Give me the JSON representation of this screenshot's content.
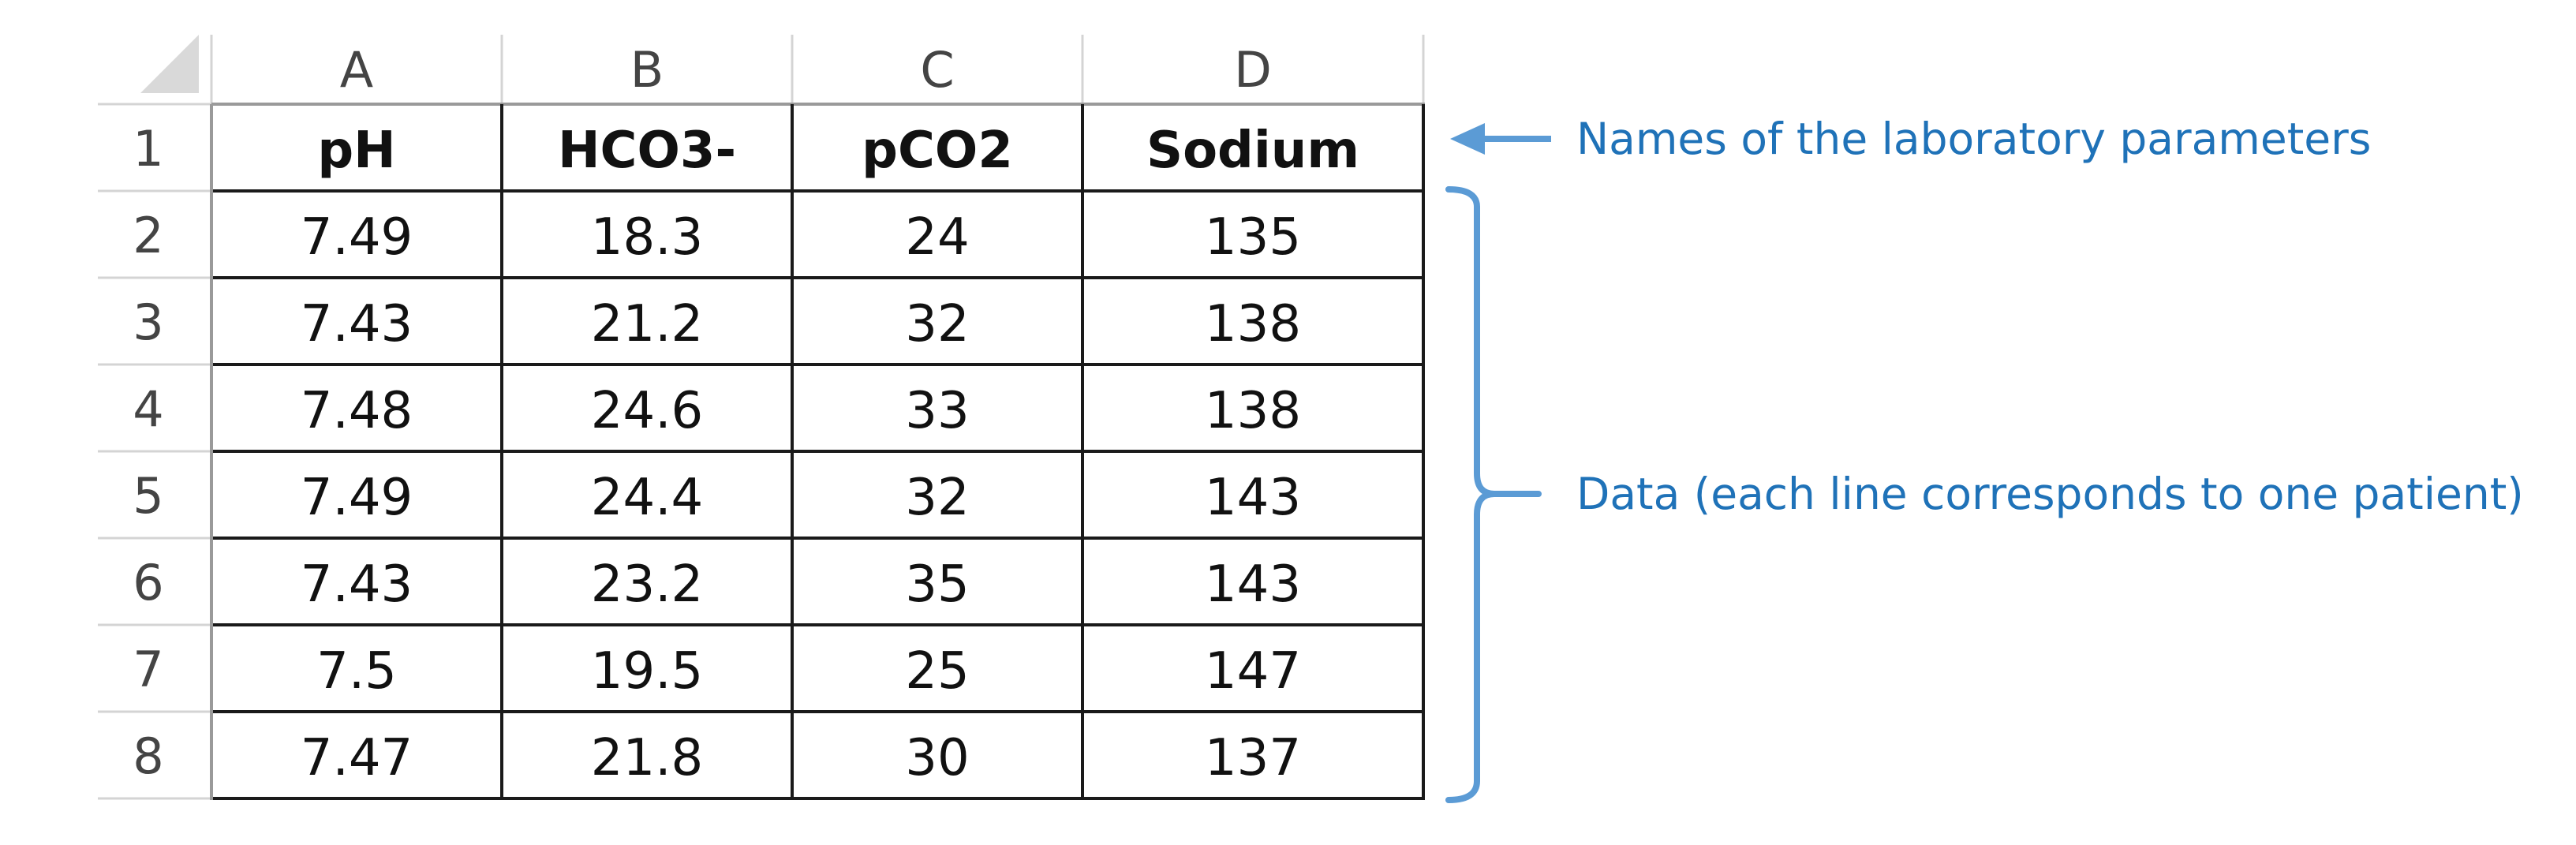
{
  "spreadsheet": {
    "column_headers": [
      "A",
      "B",
      "C",
      "D"
    ],
    "row_headers": [
      "1",
      "2",
      "3",
      "4",
      "5",
      "6",
      "7",
      "8"
    ],
    "parameter_names": [
      "pH",
      "HCO3-",
      "pCO2",
      "Sodium"
    ],
    "rows": [
      [
        "7.49",
        "18.3",
        "24",
        "135"
      ],
      [
        "7.43",
        "21.2",
        "32",
        "138"
      ],
      [
        "7.48",
        "24.6",
        "33",
        "138"
      ],
      [
        "7.49",
        "24.4",
        "32",
        "143"
      ],
      [
        "7.43",
        "23.2",
        "35",
        "143"
      ],
      [
        "7.5",
        "19.5",
        "25",
        "147"
      ],
      [
        "7.47",
        "21.8",
        "30",
        "137"
      ]
    ]
  },
  "annotations": {
    "parameter_names_label": "Names of the laboratory parameters",
    "data_label": "Data (each line corresponds to one patient)"
  },
  "colors": {
    "annotation_blue": "#1f72b8",
    "bracket_blue": "#5b9bd5",
    "grid_light": "#d4d4d4",
    "grid_dark": "#1a1a1a",
    "header_text": "#444444",
    "select_all_triangle": "#d9d9d9"
  }
}
